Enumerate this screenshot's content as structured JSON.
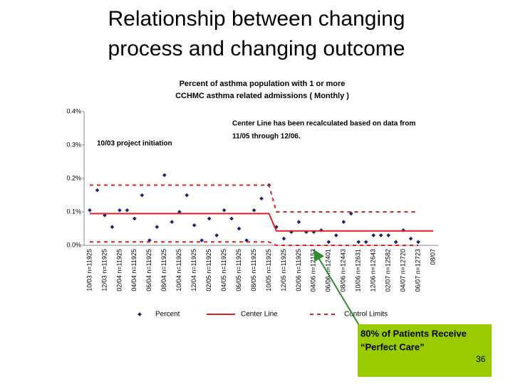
{
  "slide": {
    "title": [
      "Relationship between changing",
      "process and changing outcome"
    ],
    "page_number": "36"
  },
  "callout": {
    "lines": [
      "80% of Patients Receive",
      "“Perfect Care”"
    ]
  },
  "chart_data": {
    "type": "scatter",
    "title": [
      "Percent of asthma population with 1 or more",
      "CCHMC asthma related admissions ( Monthly )"
    ],
    "annotations": [
      [
        "Center Line has been recalculated based on data from",
        "11/05 through 12/06."
      ],
      [
        "10/03 project initiation"
      ]
    ],
    "categories": [
      "10/03 n=11925",
      null,
      "12/03 n=11925",
      null,
      "02/04 n=11925",
      null,
      "04/04 n=11925",
      null,
      "06/04 n=11925",
      null,
      "08/04 n=11925",
      null,
      "10/04 n=11925",
      null,
      "12/04 n=11925",
      null,
      "02/05 n=11925",
      null,
      "04/05 n=11925",
      null,
      "06/05 n=11925",
      null,
      "08/05 n=11925",
      null,
      "10/05 n=11925",
      null,
      "12/05 n=11925",
      null,
      "02/06 n=11925",
      null,
      "04/06 n=12153",
      null,
      "06/06 n=12401",
      null,
      "08/06 n=12443",
      null,
      "10/06 n=12631",
      null,
      "12/06 n=12643",
      null,
      "02/07 n=12582",
      null,
      "04/07 n=12720",
      null,
      "06/07 n=12723",
      null,
      "08/07"
    ],
    "series": [
      {
        "name": "Percent",
        "color": "#1c2470",
        "mark": "dot",
        "values": [
          0.105,
          0.165,
          0.09,
          0.055,
          0.105,
          0.105,
          0.08,
          0.15,
          0.015,
          0.055,
          0.21,
          0.07,
          0.1,
          0.15,
          0.06,
          0.015,
          0.08,
          0.03,
          0.105,
          0.08,
          0.05,
          0.015,
          0.105,
          0.14,
          0.18,
          0.055,
          0.02,
          0.04,
          0.07,
          0.04,
          0.04,
          0.045,
          0.01,
          0.03,
          0.07,
          0.095,
          0.01,
          0.01,
          0.03,
          0.03,
          0.03,
          0.01,
          0.045,
          0.02,
          0.01,
          null,
          null
        ]
      },
      {
        "name": "Center Line",
        "color": "#e02020",
        "mark": "line",
        "values": [
          0.095,
          0.095,
          0.095,
          0.095,
          0.095,
          0.095,
          0.095,
          0.095,
          0.095,
          0.095,
          0.095,
          0.095,
          0.095,
          0.095,
          0.095,
          0.095,
          0.095,
          0.095,
          0.095,
          0.095,
          0.095,
          0.095,
          0.095,
          0.095,
          0.095,
          0.043,
          0.043,
          0.043,
          0.043,
          0.043,
          0.043,
          0.043,
          0.043,
          0.043,
          0.043,
          0.043,
          0.043,
          0.043,
          0.043,
          0.043,
          0.043,
          0.043,
          0.043,
          0.043,
          0.043,
          0.043,
          0.043
        ]
      },
      {
        "name": "Control Limits",
        "color": "#e02020",
        "mark": "dash",
        "values": [
          0.18,
          0.18,
          0.18,
          0.18,
          0.18,
          0.18,
          0.18,
          0.18,
          0.18,
          0.18,
          0.18,
          0.18,
          0.18,
          0.18,
          0.18,
          0.18,
          0.18,
          0.18,
          0.18,
          0.18,
          0.18,
          0.18,
          0.18,
          0.18,
          0.18,
          0.1,
          0.1,
          0.1,
          0.1,
          0.1,
          0.1,
          0.1,
          0.1,
          0.1,
          0.1,
          0.1,
          0.1,
          0.1,
          0.1,
          0.1,
          0.1,
          0.1,
          0.1,
          0.1,
          0.1,
          null,
          null
        ],
        "lower_values": [
          0.01,
          0.01,
          0.01,
          0.01,
          0.01,
          0.01,
          0.01,
          0.01,
          0.01,
          0.01,
          0.01,
          0.01,
          0.01,
          0.01,
          0.01,
          0.01,
          0.01,
          0.01,
          0.01,
          0.01,
          0.01,
          0.01,
          0.01,
          0.01,
          0.01,
          0,
          0,
          0,
          0,
          0,
          0,
          0,
          0,
          0,
          0,
          0,
          0,
          0,
          0,
          0,
          0,
          0,
          0,
          0,
          0,
          null,
          null
        ]
      }
    ],
    "ylim": [
      0,
      0.4
    ],
    "yticks": [
      {
        "value": 0,
        "label": "0.0%"
      },
      {
        "value": 0.1,
        "label": "0.1%"
      },
      {
        "value": 0.2,
        "label": "0.2%"
      },
      {
        "value": 0.3,
        "label": "0.3%"
      },
      {
        "value": 0.4,
        "label": "0.4%"
      }
    ],
    "grid": false
  }
}
